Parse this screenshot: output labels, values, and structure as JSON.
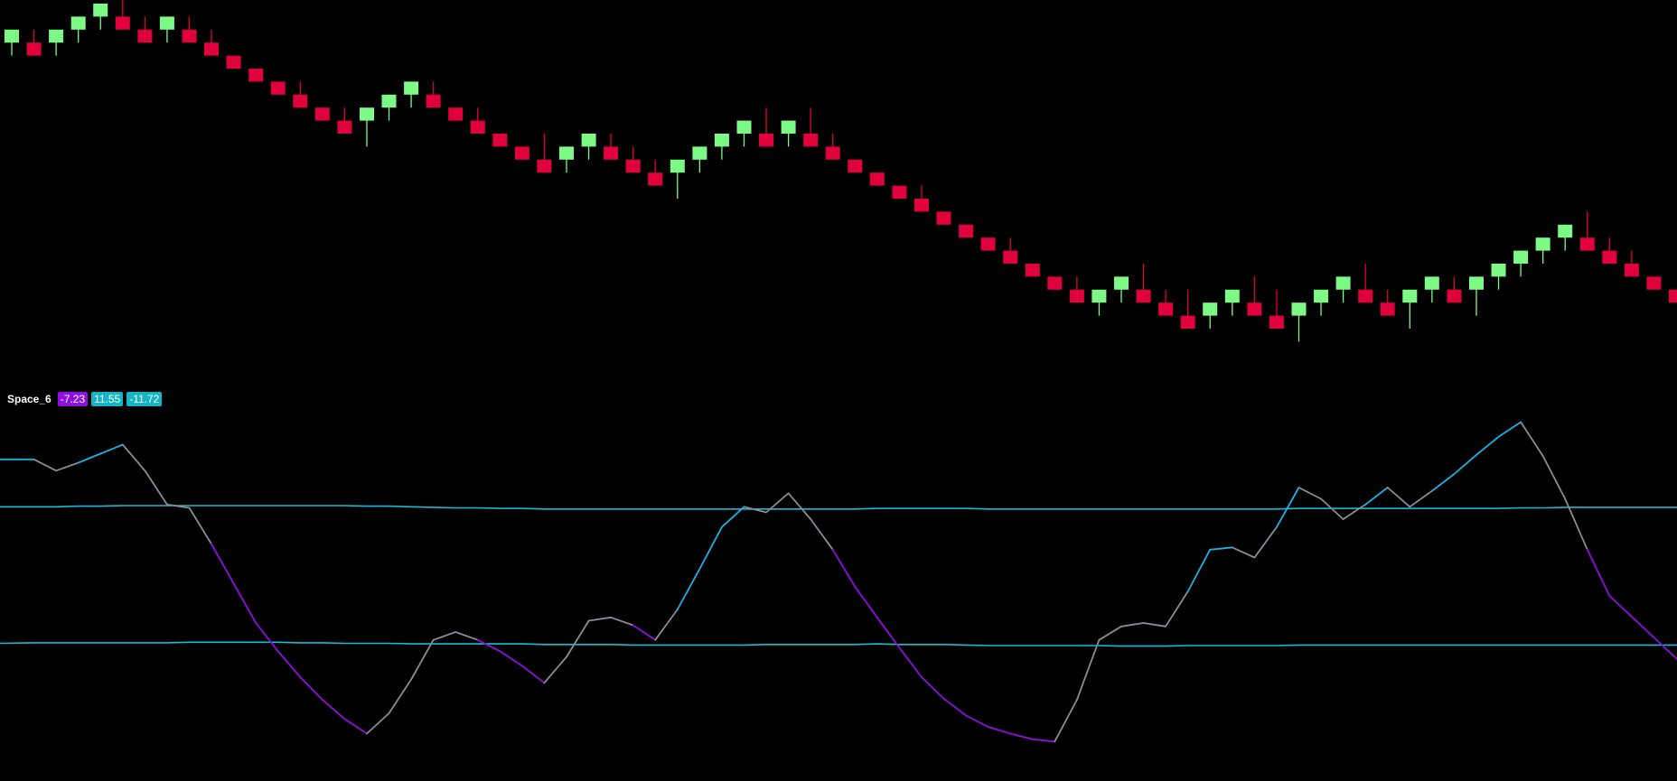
{
  "colors": {
    "background": "#000000",
    "up_candle": "#7dfa86",
    "down_candle": "#e0003c",
    "oscillator_bull": "#1ab2e6",
    "oscillator_bear": "#8e0fe0",
    "oscillator_neutral": "#8c8c94",
    "bands": "#18bcd4"
  },
  "indicator": {
    "name": "Space_6",
    "values": [
      {
        "text": "-7.23",
        "color": "#8e0fe0"
      },
      {
        "text": "11.55",
        "color": "#13b6c4"
      },
      {
        "text": "-11.72",
        "color": "#13b6c4"
      }
    ]
  },
  "chart_data": [
    {
      "type": "candlestick",
      "title": "",
      "grid": false,
      "ylim": [
        0,
        100
      ],
      "candles": [
        {
          "dir": "up",
          "open": 93.2,
          "close": 96.8,
          "high": 96.8,
          "low": 89.6
        },
        {
          "dir": "down",
          "open": 93.2,
          "close": 89.6,
          "high": 96.8,
          "low": 89.6
        },
        {
          "dir": "up",
          "open": 93.2,
          "close": 96.8,
          "high": 96.8,
          "low": 89.6
        },
        {
          "dir": "up",
          "open": 96.8,
          "close": 100.4,
          "high": 100.4,
          "low": 93.2
        },
        {
          "dir": "up",
          "open": 100.4,
          "close": 104.0,
          "high": 104.0,
          "low": 96.8
        },
        {
          "dir": "down",
          "open": 100.4,
          "close": 96.8,
          "high": 107.6,
          "low": 96.8
        },
        {
          "dir": "down",
          "open": 96.8,
          "close": 93.2,
          "high": 100.4,
          "low": 93.2
        },
        {
          "dir": "up",
          "open": 96.8,
          "close": 100.4,
          "high": 100.4,
          "low": 93.2
        },
        {
          "dir": "down",
          "open": 96.8,
          "close": 93.2,
          "high": 100.4,
          "low": 93.2
        },
        {
          "dir": "down",
          "open": 93.2,
          "close": 89.6,
          "high": 96.8,
          "low": 89.6
        },
        {
          "dir": "down",
          "open": 89.6,
          "close": 86.0,
          "high": 89.6,
          "low": 86.0
        },
        {
          "dir": "down",
          "open": 86.0,
          "close": 82.4,
          "high": 86.0,
          "low": 82.4
        },
        {
          "dir": "down",
          "open": 82.4,
          "close": 78.8,
          "high": 82.4,
          "low": 78.8
        },
        {
          "dir": "down",
          "open": 78.8,
          "close": 75.2,
          "high": 82.4,
          "low": 75.2
        },
        {
          "dir": "down",
          "open": 75.2,
          "close": 71.6,
          "high": 75.2,
          "low": 71.6
        },
        {
          "dir": "down",
          "open": 71.6,
          "close": 68.0,
          "high": 75.2,
          "low": 68.0
        },
        {
          "dir": "up",
          "open": 71.6,
          "close": 75.2,
          "high": 75.2,
          "low": 64.4
        },
        {
          "dir": "up",
          "open": 75.2,
          "close": 78.8,
          "high": 78.8,
          "low": 71.6
        },
        {
          "dir": "up",
          "open": 78.8,
          "close": 82.4,
          "high": 82.4,
          "low": 75.2
        },
        {
          "dir": "down",
          "open": 78.8,
          "close": 75.2,
          "high": 82.4,
          "low": 75.2
        },
        {
          "dir": "down",
          "open": 75.2,
          "close": 71.6,
          "high": 75.2,
          "low": 71.6
        },
        {
          "dir": "down",
          "open": 71.6,
          "close": 68.0,
          "high": 75.2,
          "low": 68.0
        },
        {
          "dir": "down",
          "open": 68.0,
          "close": 64.4,
          "high": 68.0,
          "low": 64.4
        },
        {
          "dir": "down",
          "open": 64.4,
          "close": 60.8,
          "high": 64.4,
          "low": 60.8
        },
        {
          "dir": "down",
          "open": 60.8,
          "close": 57.2,
          "high": 68.0,
          "low": 57.2
        },
        {
          "dir": "up",
          "open": 60.8,
          "close": 64.4,
          "high": 64.4,
          "low": 57.2
        },
        {
          "dir": "up",
          "open": 64.4,
          "close": 68.0,
          "high": 68.0,
          "low": 60.8
        },
        {
          "dir": "down",
          "open": 64.4,
          "close": 60.8,
          "high": 68.0,
          "low": 60.8
        },
        {
          "dir": "down",
          "open": 60.8,
          "close": 57.2,
          "high": 64.4,
          "low": 57.2
        },
        {
          "dir": "down",
          "open": 57.2,
          "close": 53.6,
          "high": 60.8,
          "low": 53.6
        },
        {
          "dir": "up",
          "open": 57.2,
          "close": 60.8,
          "high": 60.8,
          "low": 50.0
        },
        {
          "dir": "up",
          "open": 60.8,
          "close": 64.4,
          "high": 64.4,
          "low": 57.2
        },
        {
          "dir": "up",
          "open": 64.4,
          "close": 68.0,
          "high": 68.0,
          "low": 60.8
        },
        {
          "dir": "up",
          "open": 68.0,
          "close": 71.6,
          "high": 71.6,
          "low": 64.4
        },
        {
          "dir": "down",
          "open": 68.0,
          "close": 64.4,
          "high": 75.2,
          "low": 64.4
        },
        {
          "dir": "up",
          "open": 68.0,
          "close": 71.6,
          "high": 71.6,
          "low": 64.4
        },
        {
          "dir": "down",
          "open": 68.0,
          "close": 64.4,
          "high": 75.2,
          "low": 64.4
        },
        {
          "dir": "down",
          "open": 64.4,
          "close": 60.8,
          "high": 68.0,
          "low": 60.8
        },
        {
          "dir": "down",
          "open": 60.8,
          "close": 57.2,
          "high": 60.8,
          "low": 57.2
        },
        {
          "dir": "down",
          "open": 57.2,
          "close": 53.6,
          "high": 57.2,
          "low": 53.6
        },
        {
          "dir": "down",
          "open": 53.6,
          "close": 50.0,
          "high": 53.6,
          "low": 50.0
        },
        {
          "dir": "down",
          "open": 50.0,
          "close": 46.4,
          "high": 53.6,
          "low": 46.4
        },
        {
          "dir": "down",
          "open": 46.4,
          "close": 42.8,
          "high": 46.4,
          "low": 42.8
        },
        {
          "dir": "down",
          "open": 42.8,
          "close": 39.2,
          "high": 42.8,
          "low": 39.2
        },
        {
          "dir": "down",
          "open": 39.2,
          "close": 35.6,
          "high": 39.2,
          "low": 35.6
        },
        {
          "dir": "down",
          "open": 35.6,
          "close": 32.0,
          "high": 39.2,
          "low": 32.0
        },
        {
          "dir": "down",
          "open": 32.0,
          "close": 28.4,
          "high": 32.0,
          "low": 28.4
        },
        {
          "dir": "down",
          "open": 28.4,
          "close": 24.8,
          "high": 28.4,
          "low": 24.8
        },
        {
          "dir": "down",
          "open": 24.8,
          "close": 21.2,
          "high": 28.4,
          "low": 21.2
        },
        {
          "dir": "up",
          "open": 21.2,
          "close": 24.8,
          "high": 24.8,
          "low": 17.6
        },
        {
          "dir": "up",
          "open": 24.8,
          "close": 28.4,
          "high": 28.4,
          "low": 21.2
        },
        {
          "dir": "down",
          "open": 24.8,
          "close": 21.2,
          "high": 32.0,
          "low": 21.2
        },
        {
          "dir": "down",
          "open": 21.2,
          "close": 17.6,
          "high": 24.8,
          "low": 17.6
        },
        {
          "dir": "down",
          "open": 17.6,
          "close": 14.0,
          "high": 24.8,
          "low": 14.0
        },
        {
          "dir": "up",
          "open": 17.6,
          "close": 21.2,
          "high": 21.2,
          "low": 14.0
        },
        {
          "dir": "up",
          "open": 21.2,
          "close": 24.8,
          "high": 24.8,
          "low": 17.6
        },
        {
          "dir": "down",
          "open": 21.2,
          "close": 17.6,
          "high": 28.4,
          "low": 17.6
        },
        {
          "dir": "down",
          "open": 17.6,
          "close": 14.0,
          "high": 24.8,
          "low": 14.0
        },
        {
          "dir": "up",
          "open": 17.6,
          "close": 21.2,
          "high": 21.2,
          "low": 10.4
        },
        {
          "dir": "up",
          "open": 21.2,
          "close": 24.8,
          "high": 24.8,
          "low": 17.6
        },
        {
          "dir": "up",
          "open": 24.8,
          "close": 28.4,
          "high": 28.4,
          "low": 21.2
        },
        {
          "dir": "down",
          "open": 24.8,
          "close": 21.2,
          "high": 32.0,
          "low": 21.2
        },
        {
          "dir": "down",
          "open": 21.2,
          "close": 17.6,
          "high": 24.8,
          "low": 17.6
        },
        {
          "dir": "up",
          "open": 21.2,
          "close": 24.8,
          "high": 24.8,
          "low": 14.0
        },
        {
          "dir": "up",
          "open": 24.8,
          "close": 28.4,
          "high": 28.4,
          "low": 21.2
        },
        {
          "dir": "down",
          "open": 24.8,
          "close": 21.2,
          "high": 28.4,
          "low": 21.2
        },
        {
          "dir": "up",
          "open": 24.8,
          "close": 28.4,
          "high": 28.4,
          "low": 17.6
        },
        {
          "dir": "up",
          "open": 28.4,
          "close": 32.0,
          "high": 32.0,
          "low": 24.8
        },
        {
          "dir": "up",
          "open": 32.0,
          "close": 35.6,
          "high": 35.6,
          "low": 28.4
        },
        {
          "dir": "up",
          "open": 35.6,
          "close": 39.2,
          "high": 39.2,
          "low": 32.0
        },
        {
          "dir": "up",
          "open": 39.2,
          "close": 42.8,
          "high": 42.8,
          "low": 35.6
        },
        {
          "dir": "down",
          "open": 39.2,
          "close": 35.6,
          "high": 46.4,
          "low": 35.6
        },
        {
          "dir": "down",
          "open": 35.6,
          "close": 32.0,
          "high": 39.2,
          "low": 32.0
        },
        {
          "dir": "down",
          "open": 32.0,
          "close": 28.4,
          "high": 35.6,
          "low": 28.4
        },
        {
          "dir": "down",
          "open": 28.4,
          "close": 24.8,
          "high": 28.4,
          "low": 24.8
        },
        {
          "dir": "down",
          "open": 24.8,
          "close": 21.2,
          "high": 24.8,
          "low": 21.2
        }
      ]
    },
    {
      "type": "line",
      "title": "Space_6",
      "grid": false,
      "ylim": [
        -16,
        16
      ],
      "series": [
        {
          "kind": "oscillator",
          "color_rule": "blue above zero / purple below zero / grey on reversal",
          "values": [
            10.5,
            10.5,
            9.5,
            10.2,
            11.0,
            11.8,
            9.5,
            6.5,
            6.2,
            3.0,
            -0.5,
            -4.0,
            -6.5,
            -8.8,
            -10.8,
            -12.5,
            -13.8,
            -12.0,
            -9.0,
            -5.5,
            -4.8,
            -5.5,
            -6.5,
            -7.8,
            -9.3,
            -7.0,
            -3.8,
            -3.5,
            -4.2,
            -5.5,
            -2.8,
            0.8,
            4.5,
            6.3,
            5.8,
            7.5,
            5.2,
            2.5,
            -0.8,
            -3.5,
            -6.2,
            -8.8,
            -10.7,
            -12.2,
            -13.2,
            -13.8,
            -14.3,
            -14.5,
            -10.8,
            -5.5,
            -4.3,
            -4.0,
            -4.3,
            -1.2,
            2.5,
            2.7,
            1.8,
            4.5,
            8.0,
            7.0,
            5.2,
            6.5,
            8.0,
            6.3,
            7.7,
            9.2,
            10.9,
            12.5,
            13.8,
            10.8,
            7.0,
            2.5,
            -1.6,
            -7.2
          ]
        },
        {
          "kind": "upper_band",
          "values": [
            6.3,
            6.3,
            6.3,
            6.35,
            6.35,
            6.4,
            6.4,
            6.4,
            6.4,
            6.4,
            6.4,
            6.4,
            6.4,
            6.4,
            6.4,
            6.4,
            6.35,
            6.35,
            6.3,
            6.25,
            6.2,
            6.2,
            6.15,
            6.15,
            6.1,
            6.1,
            6.1,
            6.1,
            6.1,
            6.1,
            6.1,
            6.1,
            6.1,
            6.1,
            6.1,
            6.1,
            6.1,
            6.1,
            6.1,
            6.15,
            6.15,
            6.15,
            6.15,
            6.15,
            6.1,
            6.1,
            6.1,
            6.1,
            6.1,
            6.1,
            6.1,
            6.1,
            6.1,
            6.1,
            6.1,
            6.1,
            6.1,
            6.1,
            6.15,
            6.15,
            6.15,
            6.15,
            6.15,
            6.15,
            6.15,
            6.15,
            6.15,
            6.15,
            6.2,
            6.2,
            6.25,
            6.25,
            6.25,
            6.25
          ]
        },
        {
          "kind": "lower_band",
          "values": [
            -5.8,
            -5.75,
            -5.75,
            -5.75,
            -5.75,
            -5.75,
            -5.75,
            -5.75,
            -5.7,
            -5.7,
            -5.7,
            -5.7,
            -5.7,
            -5.75,
            -5.75,
            -5.8,
            -5.8,
            -5.8,
            -5.85,
            -5.85,
            -5.85,
            -5.85,
            -5.85,
            -5.85,
            -5.9,
            -5.9,
            -5.9,
            -5.9,
            -5.95,
            -5.95,
            -5.95,
            -5.95,
            -5.95,
            -5.95,
            -5.9,
            -5.9,
            -5.9,
            -5.9,
            -5.9,
            -5.85,
            -5.9,
            -5.9,
            -5.9,
            -5.95,
            -6.0,
            -6.0,
            -6.0,
            -6.0,
            -6.0,
            -6.0,
            -6.05,
            -6.05,
            -6.05,
            -6.0,
            -6.0,
            -6.0,
            -6.0,
            -6.0,
            -5.95,
            -5.95,
            -5.95,
            -5.95,
            -5.95,
            -5.95,
            -5.95,
            -5.95,
            -5.95,
            -5.95,
            -5.95,
            -5.95,
            -5.95,
            -5.95,
            -5.95,
            -5.95
          ]
        }
      ]
    }
  ]
}
